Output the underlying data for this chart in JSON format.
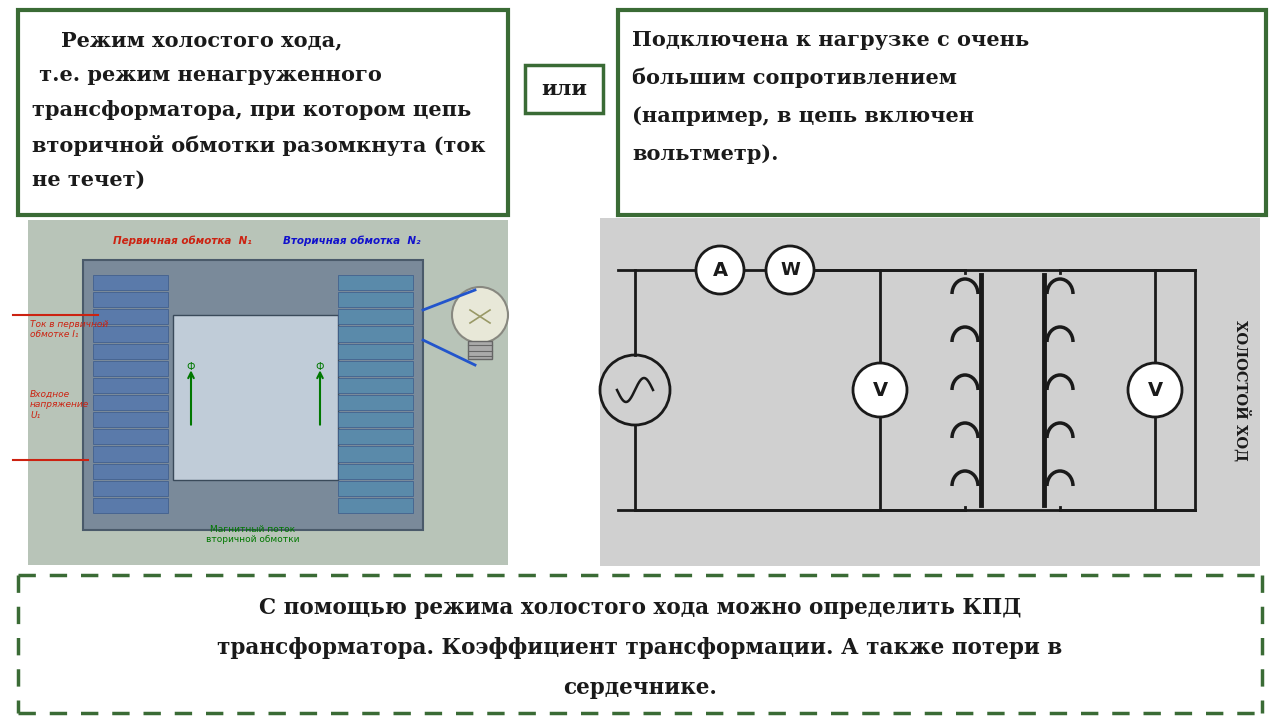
{
  "bg_color": "#ffffff",
  "dark_green": "#3a6b35",
  "text_color": "#1a1a1a",
  "box1_text_lines": [
    "    Режим холостого хода,",
    " т.е. режим ненагруженного",
    "трансформатора, при котором цепь",
    "вторичной обмотки разомкнута (ток",
    "не течет)"
  ],
  "ili_text": "или",
  "box2_text_lines": [
    "Подключена к нагрузке с очень",
    "большим сопротивлением",
    "(например, в цепь включен",
    "вольтметр)."
  ],
  "bottom_text_lines": [
    "С помощью режима холостого хода можно определить КПД",
    "трансформатора. Коэффициент трансформации. А также потери в",
    "сердечнике."
  ],
  "xolostoy_hod_text": "ХОЛОСТОЙ ХОД"
}
